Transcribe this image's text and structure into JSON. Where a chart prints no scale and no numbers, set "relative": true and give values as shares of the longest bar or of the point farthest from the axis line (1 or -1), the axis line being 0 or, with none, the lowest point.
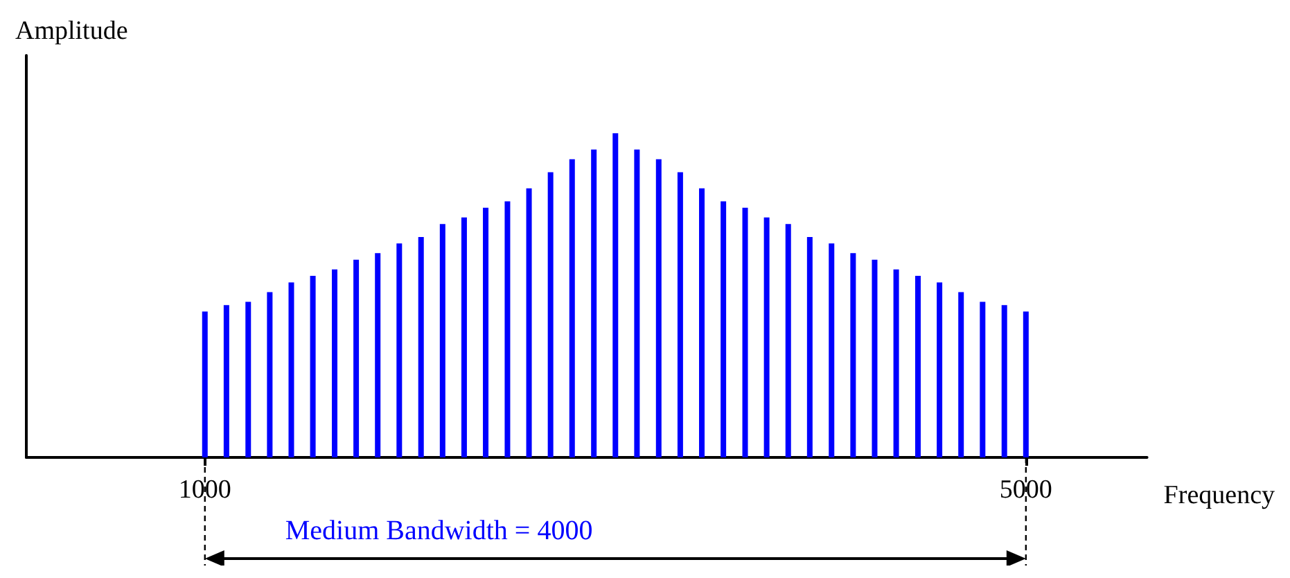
{
  "chart_data": {
    "type": "bar",
    "relative": true,
    "xlabel": "Frequency",
    "ylabel": "Amplitude",
    "x": [
      1000,
      1105,
      1211,
      1316,
      1421,
      1526,
      1632,
      1737,
      1842,
      1947,
      2053,
      2158,
      2263,
      2368,
      2474,
      2579,
      2684,
      2789,
      2895,
      3000,
      3105,
      3211,
      3316,
      3421,
      3526,
      3632,
      3737,
      3842,
      3947,
      4053,
      4158,
      4263,
      4368,
      4474,
      4579,
      4684,
      4789,
      4895,
      5000
    ],
    "series": [
      {
        "color": "#0000ff",
        "values": [
          0.45,
          0.47,
          0.48,
          0.51,
          0.54,
          0.56,
          0.58,
          0.61,
          0.63,
          0.66,
          0.68,
          0.72,
          0.74,
          0.77,
          0.79,
          0.83,
          0.88,
          0.92,
          0.95,
          1,
          0.95,
          0.92,
          0.88,
          0.83,
          0.79,
          0.77,
          0.74,
          0.72,
          0.68,
          0.66,
          0.63,
          0.61,
          0.58,
          0.56,
          0.54,
          0.51,
          0.48,
          0.47,
          0.45
        ]
      }
    ],
    "xlim": [
      130,
      5590
    ],
    "xticks": [
      1000,
      5000
    ],
    "annotations": [
      "Medium Bandwidth = 4000"
    ],
    "grid": false
  }
}
